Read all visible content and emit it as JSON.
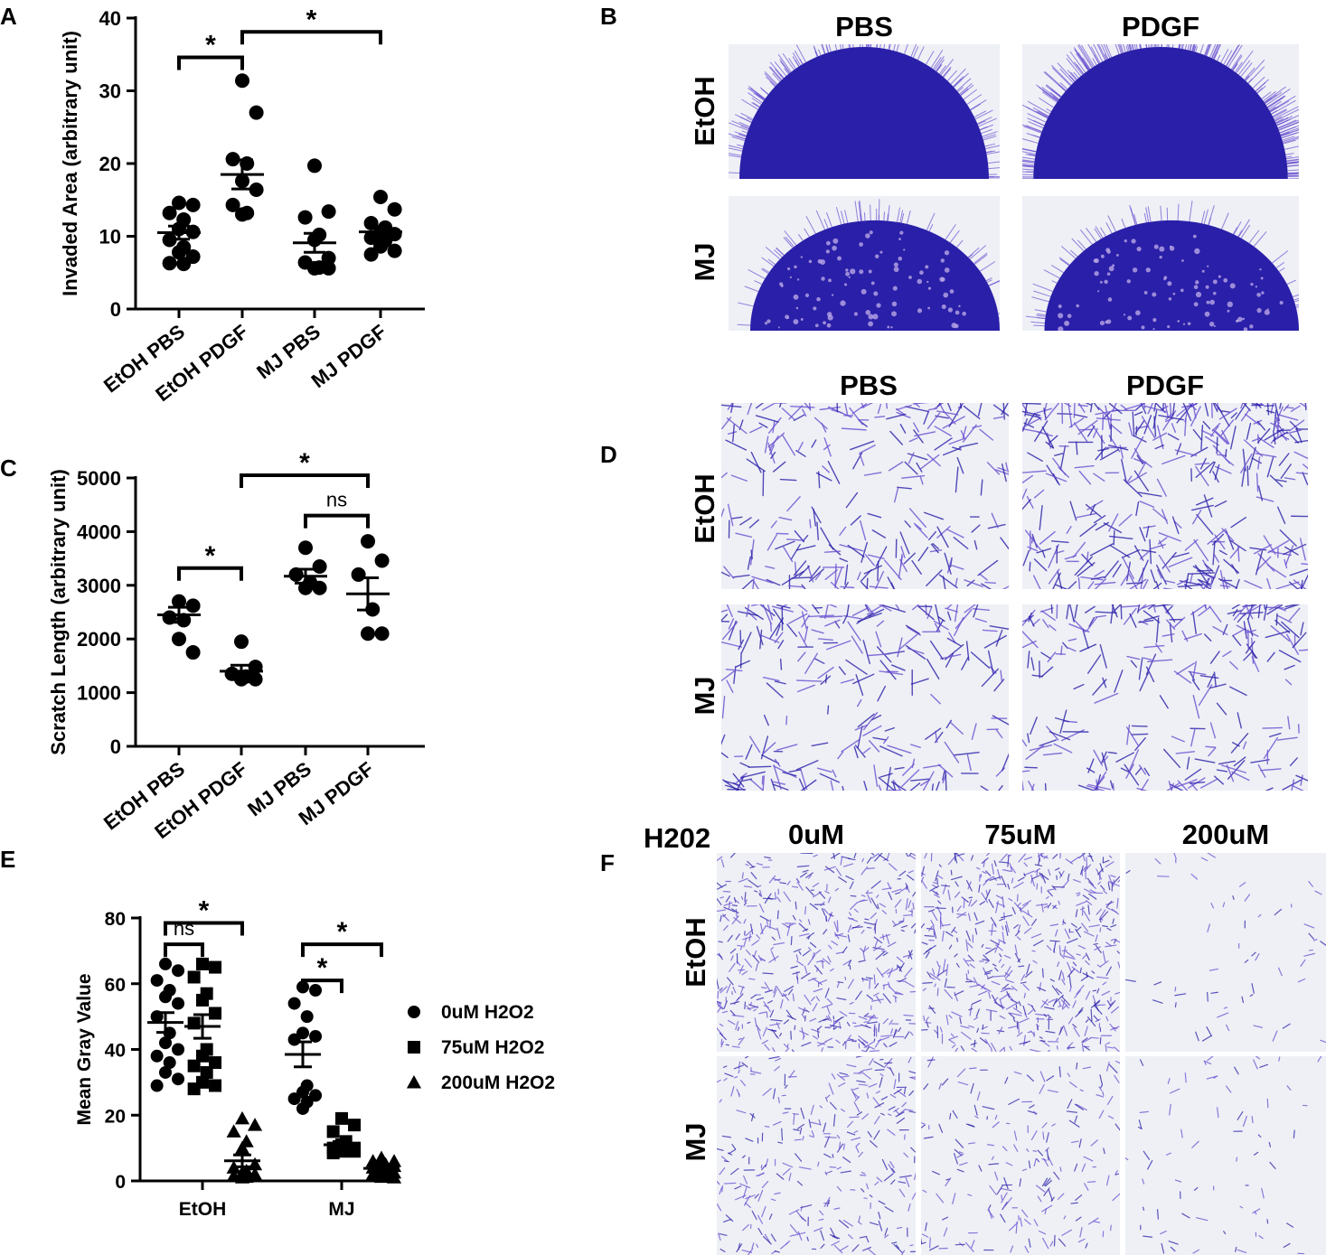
{
  "panels": {
    "A": {
      "letter": "A"
    },
    "B": {
      "letter": "B",
      "col_headers": [
        "PBS",
        "PDGF"
      ],
      "row_labels": [
        "EtOH",
        "MJ"
      ]
    },
    "C": {
      "letter": "C"
    },
    "D": {
      "letter": "D",
      "col_headers": [
        "PBS",
        "PDGF"
      ],
      "row_labels": [
        "EtOH",
        "MJ"
      ]
    },
    "E": {
      "letter": "E"
    },
    "F": {
      "letter": "F",
      "corner_label": "H202",
      "col_headers": [
        "0uM",
        "75uM",
        "200uM"
      ],
      "row_labels": [
        "EtOH",
        "MJ"
      ]
    }
  },
  "colors": {
    "stain": "#2a1fa8",
    "stain_light": "#6a4fd0",
    "micro_bg": "#eef0f6",
    "ink": "#000000"
  },
  "chart_data": [
    {
      "id": "A",
      "type": "scatter",
      "ylabel": "Invaded Area  (arbitrary unit)",
      "ylim": [
        0,
        40
      ],
      "yticks": [
        0,
        10,
        20,
        30,
        40
      ],
      "categories": [
        "EtOH PBS",
        "EtOH PDGF",
        "MJ PBS",
        "MJ PDGF"
      ],
      "marker": "circle",
      "series": [
        {
          "points": [
            14.6,
            14.3,
            13.2,
            12.3,
            11.0,
            10.6,
            9.5,
            8.5,
            7.8,
            7.2,
            6.3,
            6.2
          ],
          "mean": 10.5,
          "sem": 0.9
        },
        {
          "points": [
            31.4,
            27.0,
            20.6,
            20.0,
            17.6,
            16.4,
            14.3,
            13.2,
            13.0
          ],
          "mean": 18.5,
          "sem": 2.0
        },
        {
          "points": [
            19.7,
            13.4,
            12.6,
            10.2,
            9.5,
            7.0,
            6.4,
            5.7,
            5.6,
            5.6
          ],
          "mean": 9.1,
          "sem": 1.3
        },
        {
          "points": [
            15.4,
            13.7,
            11.8,
            11.2,
            10.6,
            10.3,
            9.8,
            9.4,
            8.6,
            8.0,
            7.5
          ],
          "mean": 10.6,
          "sem": 0.6
        }
      ],
      "brackets": [
        {
          "from": 0,
          "to": 1,
          "y": 34.6,
          "label": "*"
        },
        {
          "from": 1,
          "to": 3,
          "y": 38.1,
          "label": "*"
        }
      ]
    },
    {
      "id": "C",
      "type": "scatter",
      "ylabel": "Scratch Length (arbitrary unit)",
      "ylim": [
        0,
        5000
      ],
      "yticks": [
        0,
        1000,
        2000,
        3000,
        4000,
        5000
      ],
      "categories": [
        "EtOH PBS",
        "EtOH PDGF",
        "MJ PBS",
        "MJ PDGF"
      ],
      "marker": "circle",
      "series": [
        {
          "points": [
            2700,
            2620,
            2400,
            2350,
            2000,
            1750
          ],
          "mean": 2450,
          "sem": 140
        },
        {
          "points": [
            1950,
            1480,
            1350,
            1300,
            1250,
            1250
          ],
          "mean": 1400,
          "sem": 110
        },
        {
          "points": [
            3700,
            3350,
            3200,
            3050,
            2950,
            2950
          ],
          "mean": 3170,
          "sem": 130
        },
        {
          "points": [
            3820,
            3460,
            3200,
            2550,
            2100,
            2100
          ],
          "mean": 2840,
          "sem": 300
        }
      ],
      "brackets": [
        {
          "from": 0,
          "to": 1,
          "y": 3320,
          "label": "*"
        },
        {
          "from": 1,
          "to": 3,
          "y": 5050,
          "label": "*"
        },
        {
          "from": 2,
          "to": 3,
          "y": 4300,
          "label": "ns"
        }
      ]
    },
    {
      "id": "E",
      "type": "scatter",
      "ylabel": "Mean Gray Value",
      "ylim": [
        0,
        80
      ],
      "yticks": [
        0,
        20,
        40,
        60,
        80
      ],
      "groups": [
        "EtOH",
        "MJ"
      ],
      "legend_position": "right",
      "series": [
        {
          "name": "0uM H2O2",
          "marker": "circle",
          "groups": [
            {
              "points": [
                66,
                64,
                61,
                58,
                56,
                54,
                50,
                45,
                42,
                40,
                38,
                36,
                33,
                31,
                29
              ],
              "mean": 48.2,
              "sem": 3.0
            },
            {
              "points": [
                59,
                58,
                54,
                50,
                45,
                44,
                43,
                29,
                27,
                26,
                25,
                24,
                22
              ],
              "mean": 38.5,
              "sem": 3.8
            }
          ]
        },
        {
          "name": "75uM H2O2",
          "marker": "square",
          "groups": [
            {
              "points": [
                66,
                65,
                62,
                57,
                55,
                51,
                48,
                40,
                38,
                36,
                35,
                33,
                30,
                29,
                28
              ],
              "mean": 47.0,
              "sem": 3.6
            },
            {
              "points": [
                19,
                17,
                15,
                12,
                11,
                10,
                10,
                9.5,
                9,
                9,
                8.5
              ],
              "mean": 11.0,
              "sem": 1.0
            }
          ]
        },
        {
          "name": "200uM H2O2",
          "marker": "triangle",
          "groups": [
            {
              "points": [
                19,
                17,
                15,
                12,
                10,
                5,
                4,
                3,
                2.5,
                2,
                1.5,
                1.2,
                1
              ],
              "mean": 6.1,
              "sem": 1.8
            },
            {
              "points": [
                7,
                6,
                6,
                5,
                5,
                4.5,
                4,
                3.5,
                3,
                2.5,
                2,
                1.5,
                1.2,
                1
              ],
              "mean": 3.8,
              "sem": 0.6
            }
          ]
        }
      ],
      "brackets": [
        {
          "group": 0,
          "from": 0,
          "to": 1,
          "y": 72,
          "label": "ns"
        },
        {
          "group": 0,
          "from": 0,
          "to": 2,
          "y": 78.5,
          "label": "*"
        },
        {
          "group": 1,
          "from": 0,
          "to": 1,
          "y": 61,
          "label": "*"
        },
        {
          "group": 1,
          "from": 0,
          "to": 2,
          "y": 72,
          "label": "*"
        }
      ]
    }
  ]
}
